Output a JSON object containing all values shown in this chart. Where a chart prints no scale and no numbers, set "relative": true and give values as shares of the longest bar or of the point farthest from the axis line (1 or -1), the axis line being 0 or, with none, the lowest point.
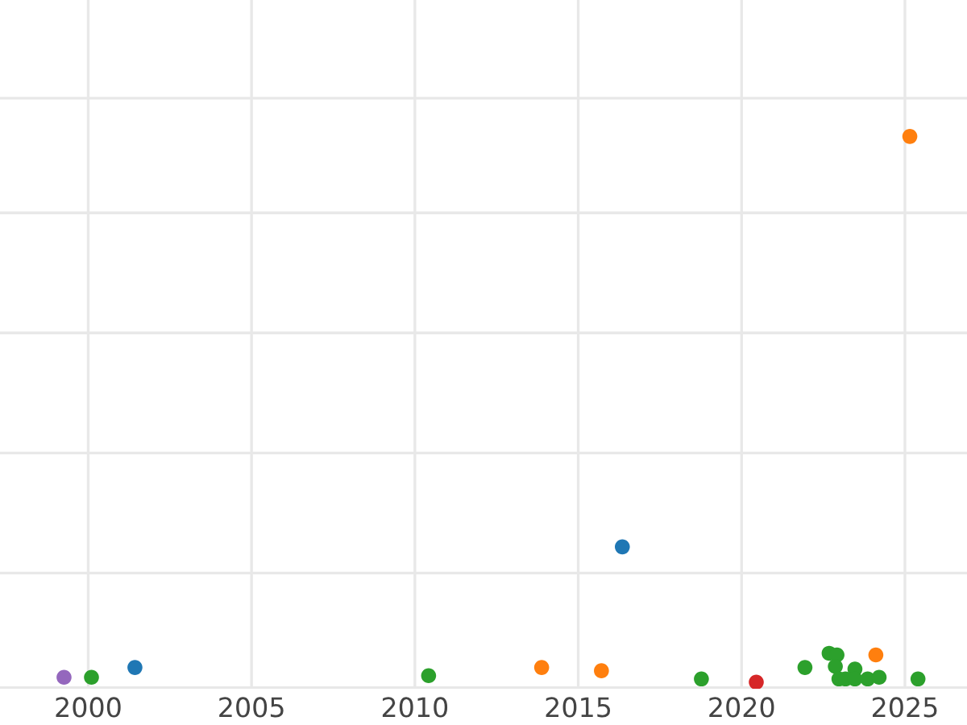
{
  "chart_data": {
    "type": "scatter",
    "relative": true,
    "grid": true,
    "tick_labels": "x",
    "marker": "circle",
    "xlim": [
      1997.3,
      2026.9
    ],
    "xticks": [
      2000,
      2005,
      2010,
      2015,
      2020,
      2025
    ],
    "series": [
      {
        "color": "#1f77b4",
        "x": [
          2001.43,
          2016.35
        ],
        "values": [
          0.027,
          0.248
        ]
      },
      {
        "color": "#ff7f0e",
        "x": [
          2013.88,
          2015.71,
          2024.11,
          2025.15
        ],
        "values": [
          0.027,
          0.021,
          0.05,
          1
        ]
      },
      {
        "color": "#2ca02c",
        "x": [
          2000.1,
          2010.42,
          2018.77,
          2021.94,
          2022.68,
          2022.92,
          2022.87,
          2022.98,
          2023.18,
          2023.47,
          2023.47,
          2023.86,
          2024.21,
          2025.4
        ],
        "values": [
          0.009,
          0.012,
          0.006,
          0.027,
          0.053,
          0.05,
          0.029,
          0.006,
          0.006,
          0.024,
          0.006,
          0.006,
          0.009,
          0.006
        ]
      },
      {
        "color": "#d62728",
        "x": [
          2020.45
        ],
        "values": [
          0
        ]
      },
      {
        "color": "#9467bd",
        "x": [
          1999.26
        ],
        "values": [
          0.009
        ]
      }
    ]
  }
}
